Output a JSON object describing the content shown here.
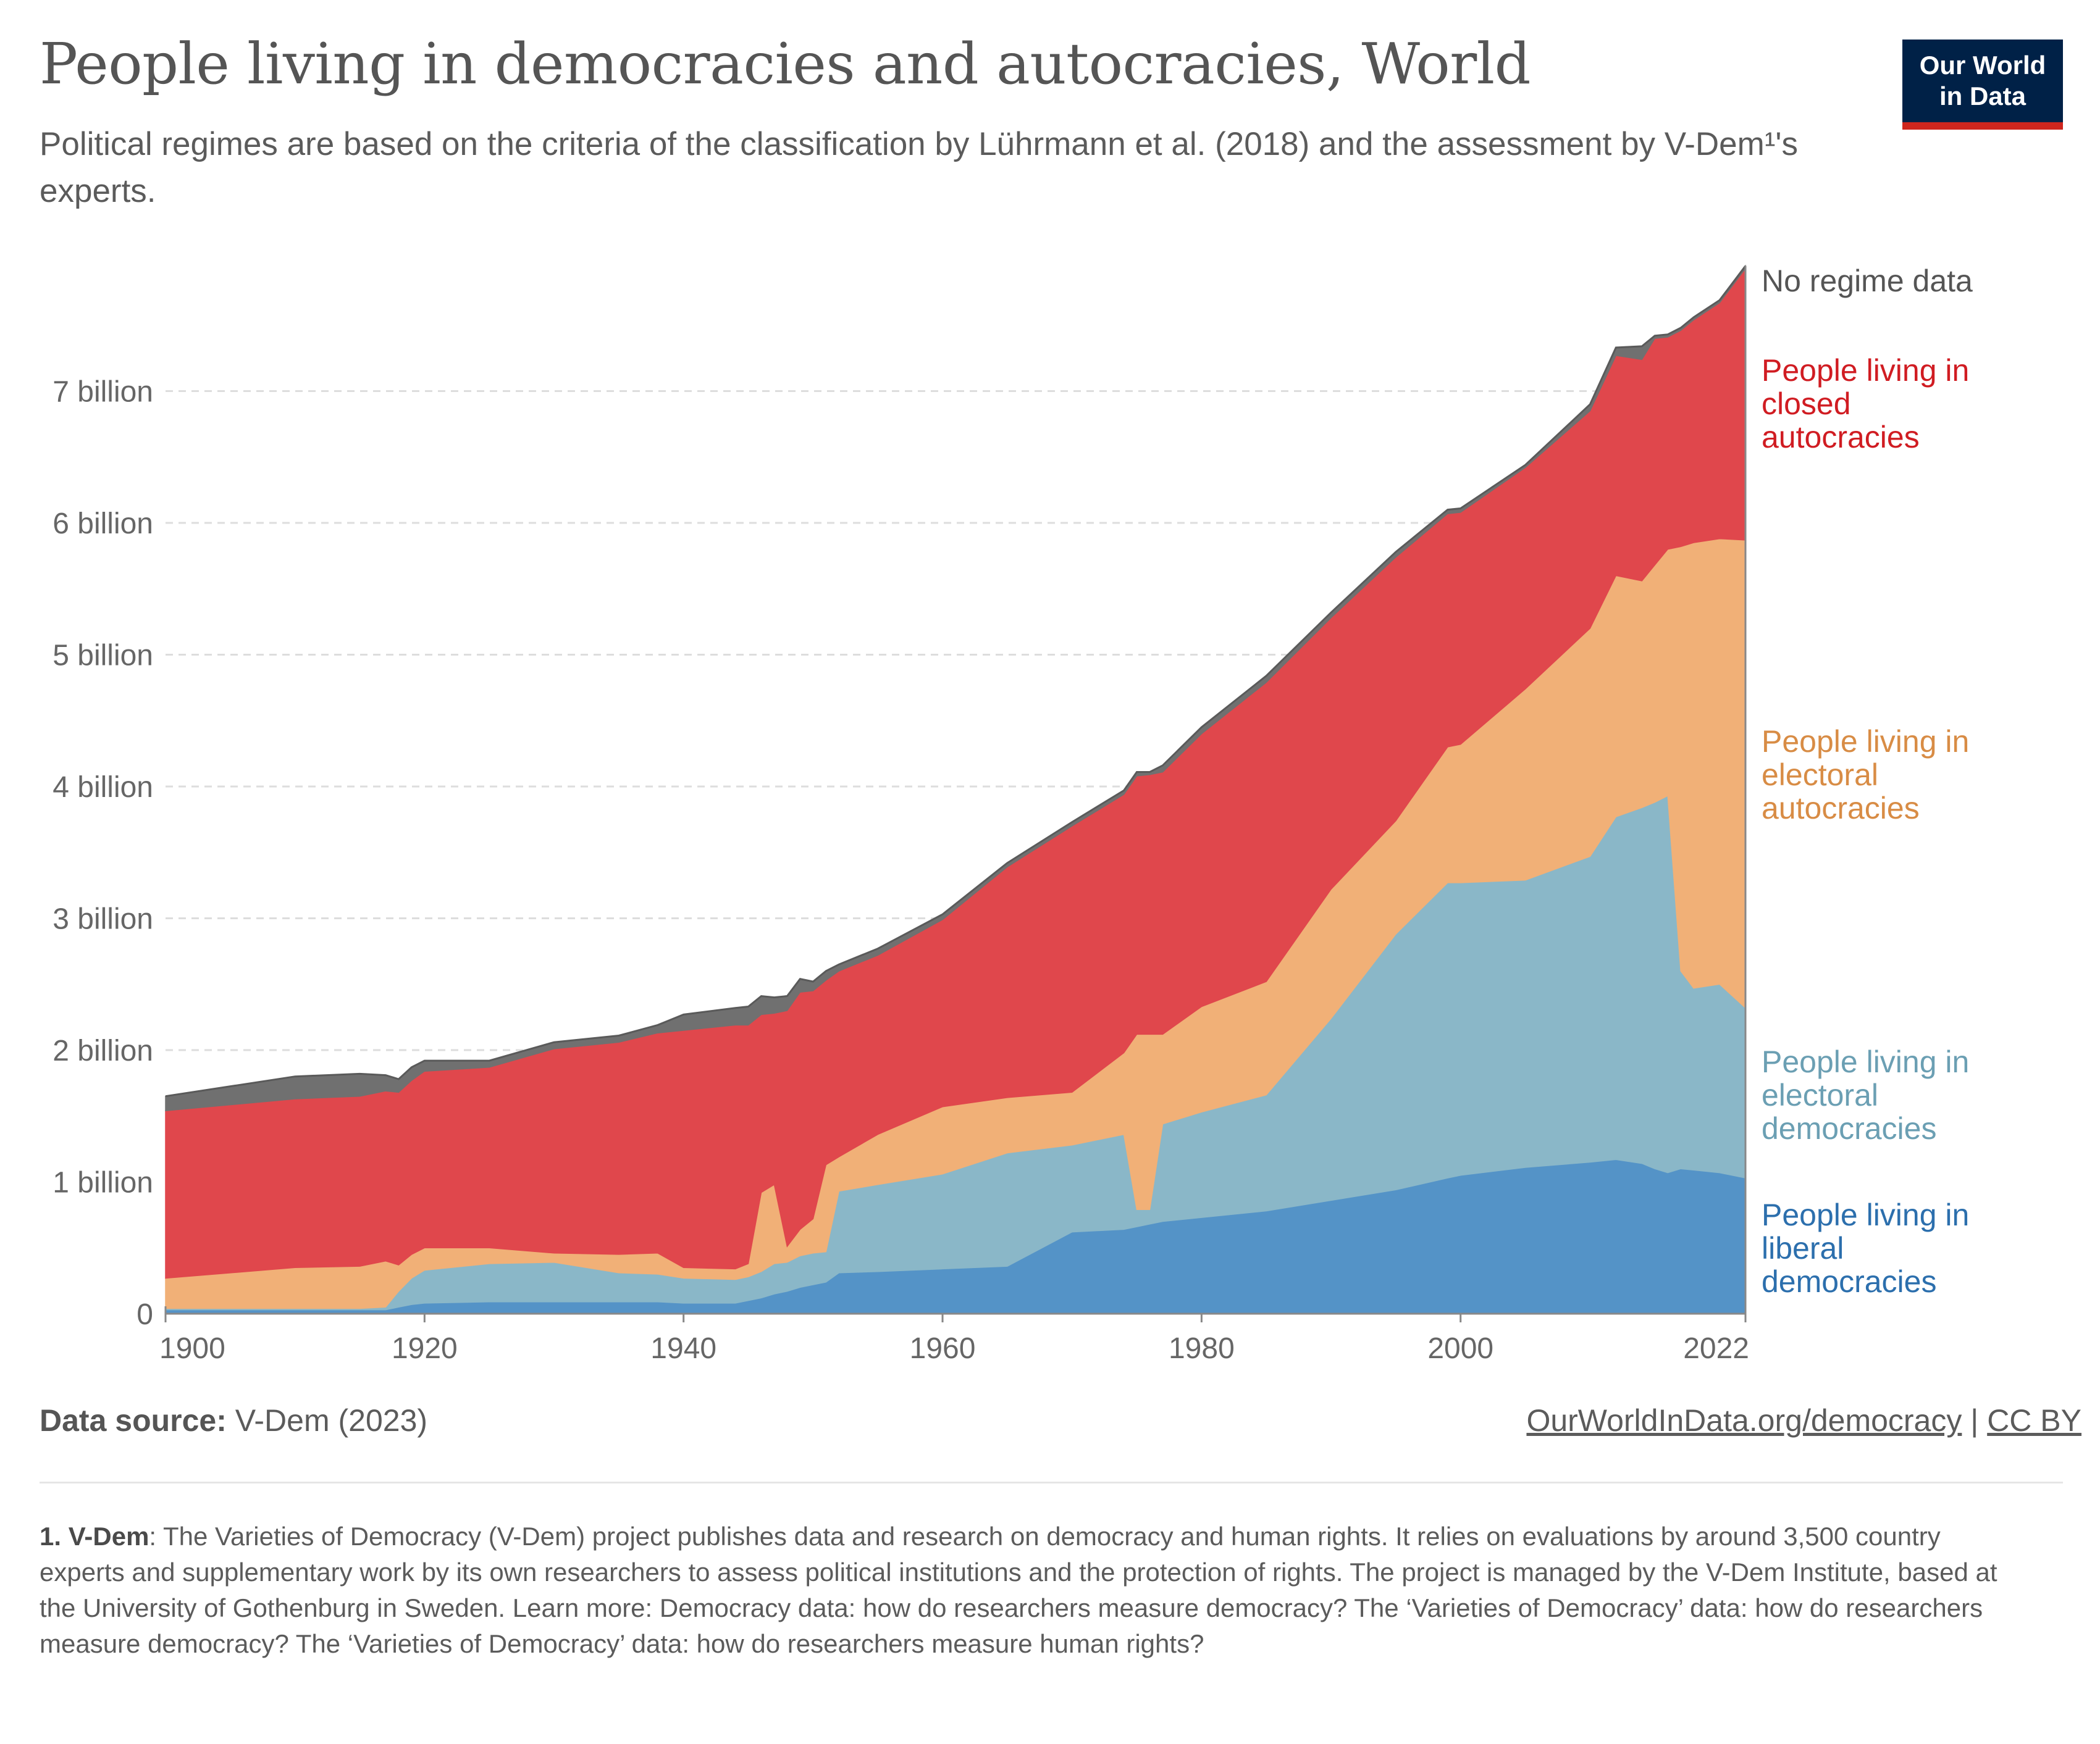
{
  "header": {
    "title": "People living in democracies and autocracies, World",
    "subtitle": "Political regimes are based on the criteria of the classification by Lührmann et al. (2018) and the assessment by V-Dem¹'s experts."
  },
  "logo": {
    "line1": "Our World",
    "line2": "in Data"
  },
  "colors": {
    "liberal": "#5493c7",
    "electoral_dem": "#8ab7c8",
    "electoral_aut": "#f1b077",
    "closed_aut": "#e0474c",
    "no_data": "#707070",
    "label_liberal": "#2c6fad",
    "label_electoral_dem": "#6b9fb3",
    "label_electoral_aut": "#d88c45",
    "label_closed_aut": "#d01c22",
    "label_no_data": "#555555"
  },
  "chart_data": {
    "type": "area",
    "stacked": true,
    "ylim": [
      0,
      8
    ],
    "y_unit": "billion",
    "y_ticks": [
      {
        "value": 0,
        "label": "0"
      },
      {
        "value": 1,
        "label": "1 billion"
      },
      {
        "value": 2,
        "label": "2 billion"
      },
      {
        "value": 3,
        "label": "3 billion"
      },
      {
        "value": 4,
        "label": "4 billion"
      },
      {
        "value": 5,
        "label": "5 billion"
      },
      {
        "value": 6,
        "label": "6 billion"
      },
      {
        "value": 7,
        "label": "7 billion"
      }
    ],
    "x_ticks": [
      1900,
      1920,
      1940,
      1960,
      1980,
      2000,
      2022
    ],
    "xlim": [
      1900,
      2022
    ],
    "grid": true,
    "x": [
      1900,
      1910,
      1915,
      1917,
      1918,
      1919,
      1920,
      1925,
      1930,
      1935,
      1938,
      1940,
      1944,
      1945,
      1946,
      1947,
      1948,
      1949,
      1950,
      1951,
      1952,
      1955,
      1960,
      1965,
      1970,
      1974,
      1975,
      1976,
      1977,
      1980,
      1985,
      1990,
      1995,
      1999,
      2000,
      2005,
      2010,
      2012,
      2014,
      2015,
      2016,
      2017,
      2018,
      2020,
      2022
    ],
    "series": [
      {
        "name": "People living in liberal democracies",
        "values": [
          0.03,
          0.03,
          0.03,
          0.03,
          0.05,
          0.07,
          0.08,
          0.09,
          0.09,
          0.09,
          0.09,
          0.08,
          0.08,
          0.1,
          0.12,
          0.15,
          0.17,
          0.2,
          0.22,
          0.24,
          0.31,
          0.32,
          0.34,
          0.36,
          0.62,
          0.64,
          0.66,
          0.68,
          0.7,
          0.73,
          0.78,
          0.86,
          0.94,
          1.03,
          1.05,
          1.11,
          1.15,
          1.17,
          1.14,
          1.1,
          1.07,
          1.1,
          1.09,
          1.07,
          1.03
        ]
      },
      {
        "name": "People living in electoral democracies",
        "values": [
          0.01,
          0.01,
          0.01,
          0.02,
          0.12,
          0.2,
          0.25,
          0.29,
          0.3,
          0.22,
          0.21,
          0.19,
          0.18,
          0.18,
          0.2,
          0.23,
          0.22,
          0.24,
          0.24,
          0.23,
          0.62,
          0.66,
          0.72,
          0.86,
          0.66,
          0.72,
          0.13,
          0.11,
          0.74,
          0.8,
          0.88,
          1.38,
          1.94,
          2.24,
          2.22,
          2.18,
          2.32,
          2.6,
          2.7,
          2.78,
          2.86,
          1.5,
          1.38,
          1.43,
          1.29
        ]
      },
      {
        "name": "People living in electoral autocracies",
        "values": [
          0.23,
          0.31,
          0.32,
          0.35,
          0.2,
          0.18,
          0.17,
          0.12,
          0.07,
          0.14,
          0.16,
          0.08,
          0.08,
          0.1,
          0.6,
          0.6,
          0.12,
          0.2,
          0.26,
          0.66,
          0.26,
          0.38,
          0.51,
          0.42,
          0.4,
          0.62,
          1.33,
          1.33,
          0.68,
          0.8,
          0.86,
          0.98,
          0.86,
          1.03,
          1.05,
          1.45,
          1.73,
          1.83,
          1.72,
          1.8,
          1.87,
          3.22,
          3.38,
          3.38,
          3.55
        ]
      },
      {
        "name": "People living in closed autocracies",
        "values": [
          1.27,
          1.28,
          1.29,
          1.29,
          1.31,
          1.32,
          1.34,
          1.37,
          1.55,
          1.61,
          1.67,
          1.8,
          1.85,
          1.81,
          1.35,
          1.3,
          1.79,
          1.8,
          1.73,
          1.4,
          1.41,
          1.36,
          1.42,
          1.75,
          2.02,
          1.96,
          1.96,
          1.97,
          1.99,
          2.07,
          2.27,
          2.06,
          2.0,
          1.77,
          1.76,
          1.68,
          1.65,
          1.67,
          1.68,
          1.72,
          1.61,
          1.64,
          1.69,
          1.79,
          2.06
        ]
      },
      {
        "name": "No regime data",
        "values": [
          0.11,
          0.17,
          0.17,
          0.12,
          0.1,
          0.1,
          0.08,
          0.05,
          0.05,
          0.05,
          0.06,
          0.12,
          0.13,
          0.14,
          0.14,
          0.12,
          0.11,
          0.1,
          0.07,
          0.07,
          0.05,
          0.05,
          0.04,
          0.03,
          0.03,
          0.03,
          0.03,
          0.02,
          0.05,
          0.05,
          0.05,
          0.04,
          0.04,
          0.03,
          0.03,
          0.02,
          0.05,
          0.06,
          0.1,
          0.02,
          0.02,
          0.02,
          0.02,
          0.02,
          0.02
        ]
      }
    ],
    "legend": [
      {
        "key": "no_data",
        "lines": [
          "No regime data"
        ]
      },
      {
        "key": "closed_aut",
        "lines": [
          "People living in",
          "closed",
          "autocracies"
        ]
      },
      {
        "key": "electoral_aut",
        "lines": [
          "People living in",
          "electoral",
          "autocracies"
        ]
      },
      {
        "key": "electoral_dem",
        "lines": [
          "People living in",
          "electoral",
          "democracies"
        ]
      },
      {
        "key": "liberal",
        "lines": [
          "People living in",
          "liberal",
          "democracies"
        ]
      }
    ],
    "legend_placement": "right"
  },
  "footer": {
    "source_label": "Data source:",
    "source_value": "V-Dem (2023)",
    "link1": "OurWorldInData.org/democracy",
    "separator": "|",
    "link2": "CC BY",
    "footnote_label": "1. V-Dem",
    "footnote_text": ": The Varieties of Democracy (V-Dem) project publishes data and research on democracy and human rights. It relies on evaluations by around 3,500 country experts and supplementary work by its own researchers to assess political institutions and the protection of rights. The project is managed by the V-Dem Institute, based at the University of Gothenburg in Sweden. Learn more: Democracy data: how do researchers measure democracy? The ‘Varieties of Democracy’ data: how do researchers measure democracy? The ‘Varieties of Democracy’ data: how do researchers measure human rights?"
  }
}
